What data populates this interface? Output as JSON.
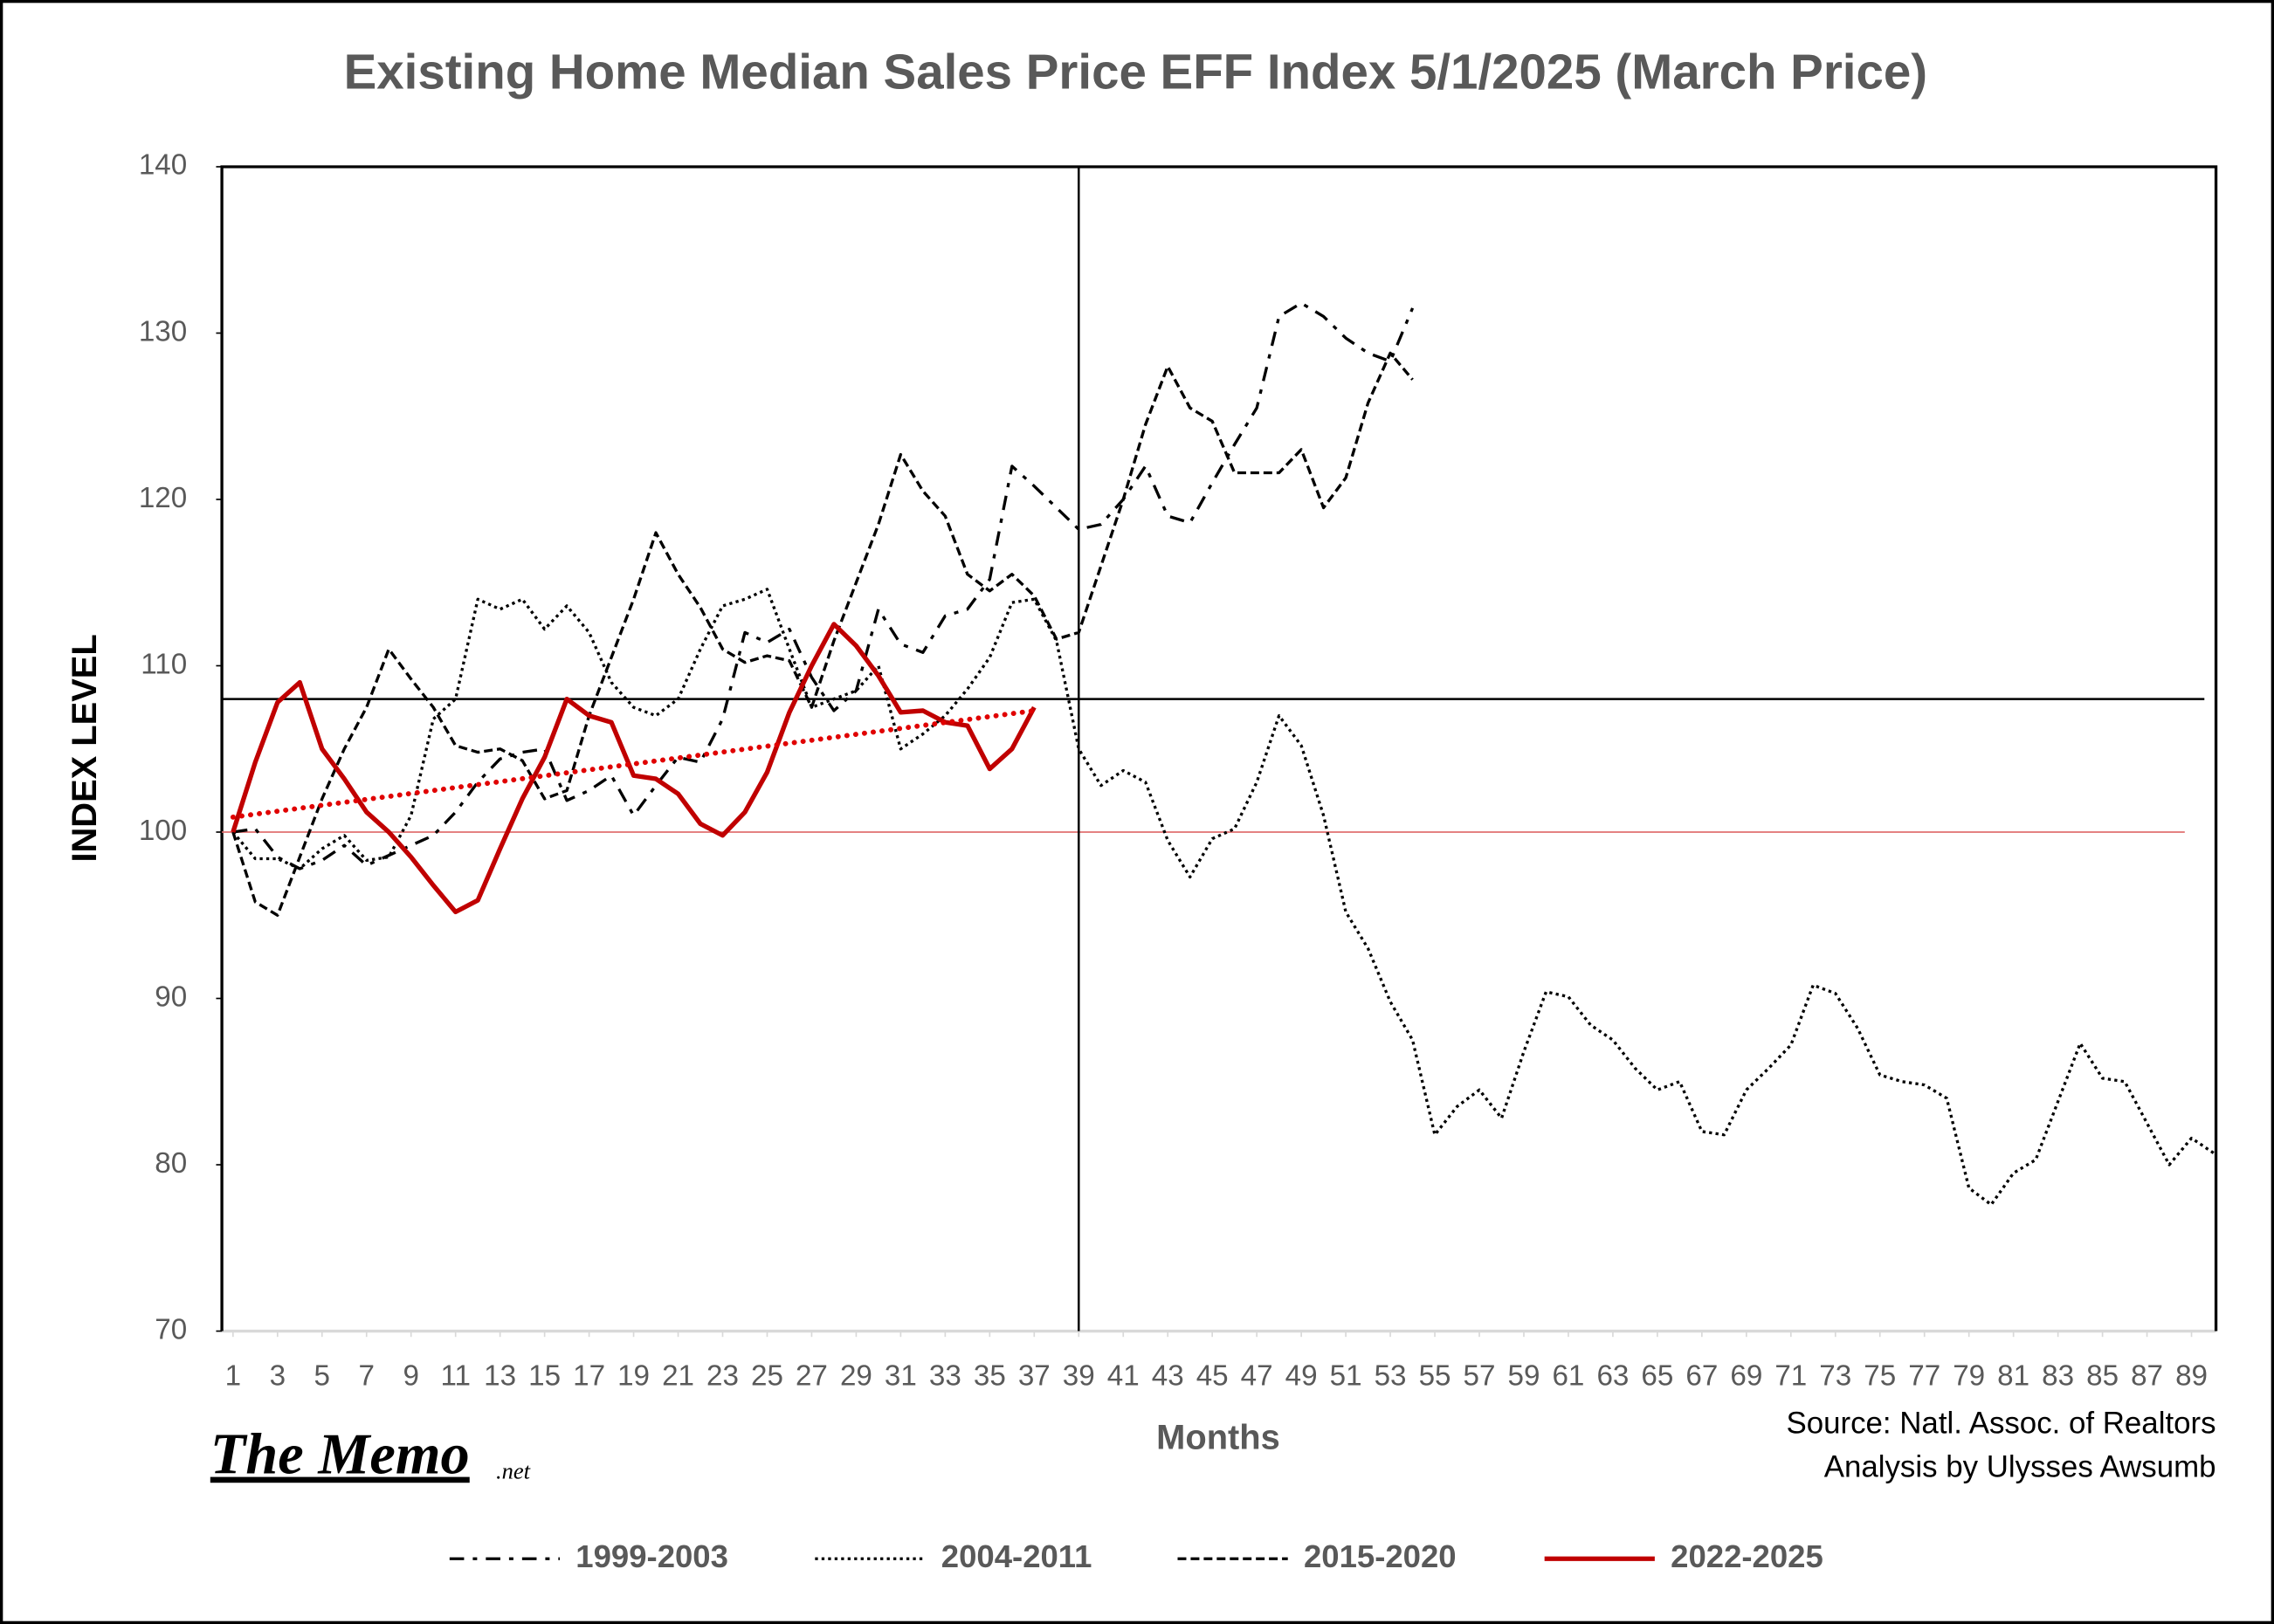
{
  "chart_data": {
    "type": "line",
    "title": "Existing Home Median Sales Price EFF  Index 5/1/2025 (March Price)",
    "y_label": "INDEX LEVEL",
    "x_label": "Months",
    "annotations": [
      "Source: Natl. Assoc. of Realtors",
      "Analysis by Ulysses Awsumb"
    ],
    "logo": {
      "text": "The Memo",
      "suffix": ".net"
    },
    "xlim": [
      0.5,
      90.1
    ],
    "ylim": [
      70,
      140
    ],
    "yticks": [
      70,
      80,
      90,
      100,
      110,
      120,
      130,
      140
    ],
    "xticks": [
      1,
      3,
      5,
      7,
      9,
      11,
      13,
      15,
      17,
      19,
      21,
      23,
      25,
      27,
      29,
      31,
      33,
      35,
      37,
      39,
      41,
      43,
      45,
      47,
      49,
      51,
      53,
      55,
      57,
      59,
      61,
      63,
      65,
      67,
      69,
      71,
      73,
      75,
      77,
      79,
      81,
      83,
      85,
      87,
      89
    ],
    "x": [
      1,
      2,
      3,
      4,
      5,
      6,
      7,
      8,
      9,
      10,
      11,
      12,
      13,
      14,
      15,
      16,
      17,
      18,
      19,
      20,
      21,
      22,
      23,
      24,
      25,
      26,
      27,
      28,
      29,
      30,
      31,
      32,
      33,
      34,
      35,
      36,
      37,
      38,
      39,
      40,
      41,
      42,
      43,
      44,
      45,
      46,
      47,
      48,
      49,
      50,
      51,
      52,
      53,
      54,
      55,
      56,
      57,
      58,
      59,
      60,
      61,
      62,
      63,
      64,
      65,
      66,
      67,
      68,
      69,
      70,
      71,
      72,
      73,
      74,
      75,
      76,
      77,
      78,
      79,
      80,
      81,
      82,
      83,
      84,
      85,
      86,
      87,
      88,
      89,
      90
    ],
    "hlines": [
      {
        "value": 108,
        "color": "#000000"
      },
      {
        "value": 100,
        "color": "#e07070"
      }
    ],
    "vlines": [
      {
        "value": 39,
        "color": "#000000"
      }
    ],
    "series": [
      {
        "name": "1999-2003",
        "color": "#000000",
        "line_style": "dash-dot",
        "values": [
          100,
          100.2,
          98.5,
          97.8,
          98.3,
          99.2,
          98,
          98.6,
          99.2,
          99.8,
          101.2,
          103,
          104.4,
          104.8,
          105,
          101.9,
          102.5,
          103.4,
          101,
          102.8,
          104.5,
          104.2,
          106.8,
          112,
          111.4,
          112.2,
          109.3,
          107.3,
          108.5,
          113.4,
          111.3,
          110.8,
          113,
          113.4,
          115.2,
          122,
          120.8,
          119.5,
          118.2,
          118.5,
          120,
          122,
          119,
          118.6,
          121,
          123.3,
          125.5,
          131,
          131.8,
          131,
          129.7,
          128.8,
          128.3,
          131.5,
          null,
          null,
          null,
          null,
          null,
          null,
          null,
          null,
          null,
          null,
          null,
          null,
          null,
          null,
          null,
          null,
          null,
          null,
          null,
          null,
          null,
          null,
          null,
          null,
          null,
          null,
          null,
          null,
          null,
          null,
          null,
          null,
          null,
          null,
          null,
          null
        ]
      },
      {
        "name": "2004-2011",
        "color": "#000000",
        "line_style": "dotted",
        "values": [
          100,
          98.4,
          98.4,
          97.8,
          99,
          99.8,
          98.3,
          98.5,
          101,
          106.8,
          108,
          114,
          113.4,
          114,
          112.2,
          113.6,
          112,
          109,
          107.5,
          107,
          108,
          111,
          113.6,
          114,
          114.6,
          111,
          107.5,
          108,
          108.5,
          110,
          105,
          105.9,
          107,
          108.6,
          110.5,
          113.8,
          114,
          111.5,
          105,
          102.8,
          103.7,
          103,
          99.5,
          97.3,
          99.6,
          100.2,
          103,
          107,
          105.2,
          101,
          95.2,
          93,
          89.8,
          87.5,
          81.8,
          83.5,
          84.5,
          82.8,
          86.8,
          90.4,
          90.1,
          88.4,
          87.5,
          85.8,
          84.5,
          85,
          82,
          81.8,
          84.5,
          85.8,
          87.2,
          90.8,
          90.3,
          88.2,
          85.4,
          85,
          84.8,
          84,
          78.6,
          77.6,
          79.5,
          80.3,
          83.8,
          87.3,
          85.2,
          85,
          82.5,
          80,
          81.6,
          80.7
        ]
      },
      {
        "name": "2015-2020",
        "color": "#000000",
        "line_style": "dashed",
        "values": [
          100,
          95.8,
          95,
          98.5,
          102,
          105,
          107.5,
          111,
          109.2,
          107.5,
          105.2,
          104.8,
          105,
          104.3,
          102,
          102.5,
          107,
          110.5,
          114,
          118,
          115.5,
          113.5,
          111,
          110.2,
          110.6,
          110.3,
          107.5,
          111.5,
          115,
          118.5,
          122.7,
          120.5,
          119,
          115.5,
          114.5,
          115.5,
          114.2,
          111.6,
          112,
          116,
          120,
          124.5,
          128,
          125.5,
          124.7,
          121.6,
          121.6,
          121.6,
          123,
          119.5,
          121.3,
          125.8,
          128.8,
          127.2,
          null,
          null,
          null,
          null,
          null,
          null,
          null,
          null,
          null,
          null,
          null,
          null,
          null,
          null,
          null,
          null,
          null,
          null,
          null,
          null,
          null,
          null,
          null,
          null,
          null,
          null,
          null,
          null,
          null,
          null,
          null,
          null,
          null,
          null,
          null,
          null
        ]
      },
      {
        "name": "2022-2025",
        "color": "#c00000",
        "line_style": "solid",
        "values": [
          100,
          104.2,
          107.8,
          109,
          105,
          103.2,
          101.2,
          100,
          98.5,
          96.8,
          95.2,
          95.9,
          99,
          102,
          104.5,
          108,
          107,
          106.6,
          103.4,
          103.2,
          102.3,
          100.5,
          99.8,
          101.2,
          103.6,
          107.2,
          110,
          112.5,
          111.2,
          109.4,
          107.2,
          107.3,
          106.6,
          106.4,
          103.8,
          105,
          107.5,
          null,
          null,
          null,
          null,
          null,
          null,
          null,
          null,
          null,
          null,
          null,
          null,
          null,
          null,
          null,
          null,
          null,
          null,
          null,
          null,
          null,
          null,
          null,
          null,
          null,
          null,
          null,
          null,
          null,
          null,
          null,
          null,
          null,
          null,
          null,
          null,
          null,
          null,
          null,
          null,
          null,
          null,
          null,
          null,
          null,
          null,
          null,
          null,
          null,
          null,
          null,
          null,
          null
        ]
      }
    ],
    "trendline": {
      "x": [
        1,
        37
      ],
      "values": [
        100.9,
        107.3
      ],
      "color": "#e00000"
    }
  }
}
